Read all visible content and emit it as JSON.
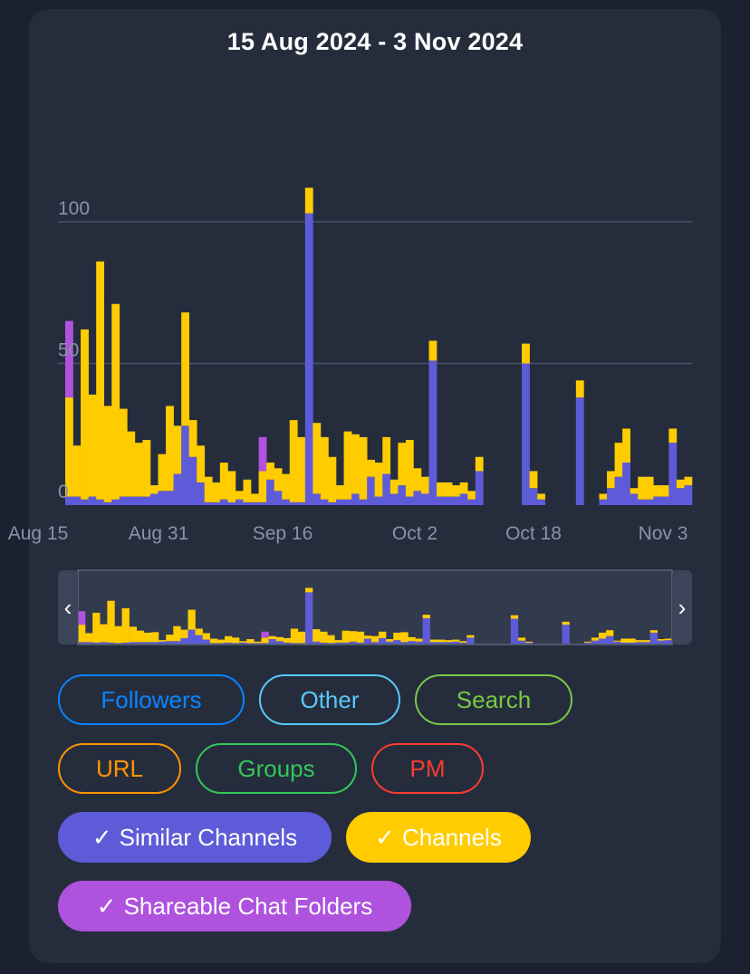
{
  "chart_data": {
    "type": "bar",
    "stacked": true,
    "title": "15 Aug 2024 - 3 Nov 2024",
    "x_tick_labels": [
      "Aug 15",
      "Aug 31",
      "Sep 16",
      "Oct 2",
      "Oct 18",
      "Nov 3"
    ],
    "y_tick_labels": [
      "0",
      "50",
      "100"
    ],
    "ylim": [
      0,
      100
    ],
    "grid": true,
    "categories": [
      "Aug 15",
      "Aug 16",
      "Aug 17",
      "Aug 18",
      "Aug 19",
      "Aug 20",
      "Aug 21",
      "Aug 22",
      "Aug 23",
      "Aug 24",
      "Aug 25",
      "Aug 26",
      "Aug 27",
      "Aug 28",
      "Aug 29",
      "Aug 30",
      "Aug 31",
      "Sep 1",
      "Sep 2",
      "Sep 3",
      "Sep 4",
      "Sep 5",
      "Sep 6",
      "Sep 7",
      "Sep 8",
      "Sep 9",
      "Sep 10",
      "Sep 11",
      "Sep 12",
      "Sep 13",
      "Sep 14",
      "Sep 15",
      "Sep 16",
      "Sep 17",
      "Sep 18",
      "Sep 19",
      "Sep 20",
      "Sep 21",
      "Sep 22",
      "Sep 23",
      "Sep 24",
      "Sep 25",
      "Sep 26",
      "Sep 27",
      "Sep 28",
      "Sep 29",
      "Sep 30",
      "Oct 1",
      "Oct 2",
      "Oct 3",
      "Oct 4",
      "Oct 5",
      "Oct 6",
      "Oct 7",
      "Oct 8",
      "Oct 9",
      "Oct 10",
      "Oct 11",
      "Oct 12",
      "Oct 13",
      "Oct 14",
      "Oct 15",
      "Oct 16",
      "Oct 17",
      "Oct 18",
      "Oct 19",
      "Oct 20",
      "Oct 21",
      "Oct 22",
      "Oct 23",
      "Oct 24",
      "Oct 25",
      "Oct 26",
      "Oct 27",
      "Oct 28",
      "Oct 29",
      "Oct 30",
      "Oct 31",
      "Nov 1",
      "Nov 2",
      "Nov 3"
    ],
    "series": [
      {
        "name": "Similar Channels",
        "color": "#5e5bd8",
        "values": [
          3,
          3,
          2,
          3,
          2,
          1,
          2,
          3,
          3,
          3,
          3,
          4,
          5,
          5,
          11,
          28,
          17,
          8,
          1,
          1,
          2,
          1,
          2,
          1,
          1,
          1,
          9,
          5,
          2,
          1,
          1,
          103,
          4,
          2,
          1,
          2,
          2,
          4,
          2,
          10,
          3,
          11,
          4,
          7,
          3,
          5,
          4,
          51,
          3,
          3,
          3,
          4,
          2,
          12,
          0,
          0,
          0,
          0,
          0,
          50,
          6,
          2,
          0,
          0,
          0,
          0,
          38,
          0,
          0,
          2,
          6,
          10,
          15,
          4,
          2,
          2,
          3,
          3,
          22,
          6,
          7
        ]
      },
      {
        "name": "Channels",
        "color": "#ffcc00",
        "values": [
          35,
          18,
          60,
          36,
          84,
          34,
          69,
          31,
          23,
          19,
          20,
          3,
          13,
          30,
          17,
          40,
          13,
          13,
          9,
          7,
          13,
          11,
          3,
          8,
          3,
          11,
          6,
          8,
          9,
          29,
          23,
          9,
          25,
          22,
          16,
          5,
          24,
          21,
          22,
          6,
          12,
          13,
          5,
          15,
          20,
          8,
          6,
          7,
          5,
          5,
          4,
          4,
          3,
          5,
          0,
          0,
          0,
          0,
          0,
          7,
          6,
          2,
          0,
          0,
          0,
          0,
          6,
          0,
          0,
          2,
          6,
          12,
          12,
          2,
          8,
          8,
          4,
          4,
          5,
          3,
          3
        ]
      },
      {
        "name": "Shareable Chat Folders",
        "color": "#af52de",
        "values": [
          27,
          0,
          0,
          0,
          0,
          0,
          0,
          0,
          0,
          0,
          0,
          0,
          0,
          0,
          0,
          0,
          0,
          0,
          0,
          0,
          0,
          0,
          0,
          0,
          0,
          12,
          0,
          0,
          0,
          0,
          0,
          0,
          0,
          0,
          0,
          0,
          0,
          0,
          0,
          0,
          0,
          0,
          0,
          0,
          0,
          0,
          0,
          0,
          0,
          0,
          0,
          0,
          0,
          0,
          0,
          0,
          0,
          0,
          0,
          0,
          0,
          0,
          0,
          0,
          0,
          0,
          0,
          0,
          0,
          0,
          0,
          0,
          0,
          0,
          0,
          0,
          0,
          0,
          0,
          0,
          0
        ]
      }
    ]
  },
  "navigator": {
    "left_handle": "‹",
    "right_handle": "›"
  },
  "filters": [
    {
      "label": "Followers",
      "color": "#0a84ff",
      "active": false
    },
    {
      "label": "Other",
      "color": "#5ac8fa",
      "active": false
    },
    {
      "label": "Search",
      "color": "#7ac943",
      "active": false
    },
    {
      "label": "URL",
      "color": "#ff9500",
      "active": false
    },
    {
      "label": "Groups",
      "color": "#34c759",
      "active": false
    },
    {
      "label": "PM",
      "color": "#ff3b30",
      "active": false
    },
    {
      "label": "Similar Channels",
      "color": "#5e5bd8",
      "active": true
    },
    {
      "label": "Channels",
      "color": "#ffcc00",
      "active": true
    },
    {
      "label": "Shareable Chat Folders",
      "color": "#af52de",
      "active": true
    }
  ],
  "check_glyph": "✓"
}
